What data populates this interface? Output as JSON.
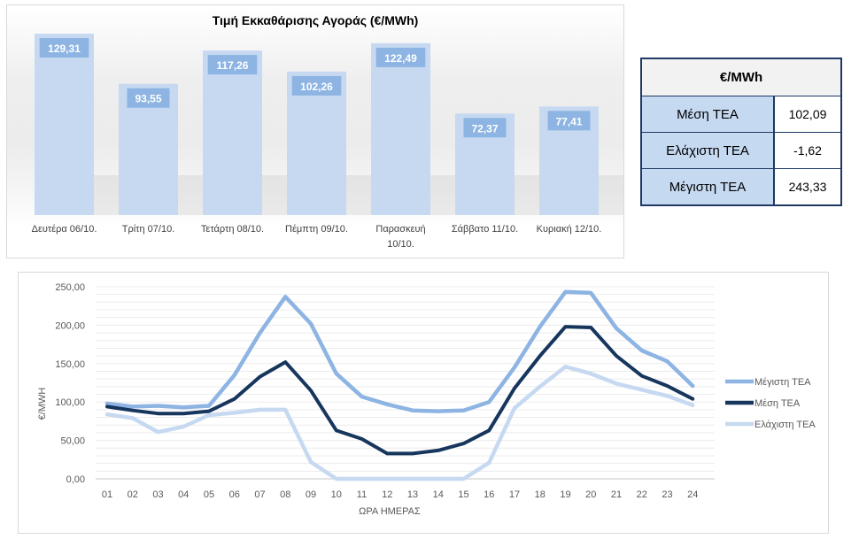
{
  "bar_chart": {
    "title": "Τιμή Εκκαθάρισης Αγοράς (€/MWh)",
    "bar_color": "#c6d9f1",
    "label_bg": "#8db4e2",
    "label_color": "#ffffff"
  },
  "stats_table": {
    "header": "€/MWh",
    "rows": [
      {
        "label": "Μέση ΤΕΑ",
        "value": "102,09"
      },
      {
        "label": "Ελάχιστη ΤΕΑ",
        "value": "-1,62"
      },
      {
        "label": "Μέγιστη ΤΕΑ",
        "value": "243,33"
      }
    ]
  },
  "line_chart": {
    "colors": {
      "max": "#8db4e2",
      "mean": "#17365d",
      "min": "#c6d9f1"
    }
  },
  "chart_data": [
    {
      "type": "bar",
      "title": "Τιμή Εκκαθάρισης Αγοράς (€/MWh)",
      "categories": [
        "Δευτέρα 06/10.",
        "Τρίτη 07/10.",
        "Τετάρτη 08/10.",
        "Πέμπτη 09/10.",
        "Παρασκευή 10/10.",
        "Σάββατο 11/10.",
        "Κυριακή 12/10."
      ],
      "category_lines": [
        [
          "Δευτέρα 06/10."
        ],
        [
          "Τρίτη 07/10."
        ],
        [
          "Τετάρτη 08/10."
        ],
        [
          "Πέμπτη 09/10."
        ],
        [
          "Παρασκευή",
          "10/10."
        ],
        [
          "Σάββατο 11/10."
        ],
        [
          "Κυριακή 12/10."
        ]
      ],
      "values": [
        129.31,
        93.55,
        117.26,
        102.26,
        122.49,
        72.37,
        77.41
      ],
      "value_labels": [
        "129,31",
        "93,55",
        "117,26",
        "102,26",
        "122,49",
        "72,37",
        "77,41"
      ],
      "xlabel": "",
      "ylabel": "",
      "ylim": [
        0,
        130
      ],
      "grid": false,
      "legend": "none"
    },
    {
      "type": "line",
      "title": "",
      "xlabel": "ΩΡΑ ΗΜΕΡΑΣ",
      "ylabel": "€/MWH",
      "x": [
        "01",
        "02",
        "03",
        "04",
        "05",
        "06",
        "07",
        "08",
        "09",
        "10",
        "11",
        "12",
        "13",
        "14",
        "15",
        "16",
        "17",
        "18",
        "19",
        "20",
        "21",
        "22",
        "23",
        "24"
      ],
      "ylim": [
        0,
        250
      ],
      "yticks": [
        0,
        50,
        100,
        150,
        200,
        250
      ],
      "ytick_labels": [
        "0,00",
        "50,00",
        "100,00",
        "150,00",
        "200,00",
        "250,00"
      ],
      "grid": true,
      "legend": "right",
      "series": [
        {
          "name": "Μέγιστη ΤΕΑ",
          "key": "max",
          "values": [
            98,
            94,
            95,
            93,
            95,
            135,
            190,
            237,
            202,
            137,
            107,
            97,
            89,
            88,
            89,
            100,
            145,
            198,
            243.33,
            242,
            196,
            167,
            153,
            121
          ]
        },
        {
          "name": "Μέση ΤΕΑ",
          "key": "mean",
          "values": [
            94,
            89,
            85,
            85,
            88,
            104,
            133,
            152,
            115,
            63,
            52,
            33,
            33,
            37,
            46,
            63,
            118,
            160,
            198,
            197,
            160,
            134,
            121,
            104
          ]
        },
        {
          "name": "Ελάχιστη ΤΕΑ",
          "key": "min",
          "values": [
            84,
            79,
            61,
            68,
            83,
            86,
            90,
            90,
            22,
            -1.62,
            0,
            0,
            0,
            0,
            0,
            21,
            92,
            120,
            146,
            137,
            124,
            116,
            108,
            96
          ]
        }
      ]
    }
  ]
}
